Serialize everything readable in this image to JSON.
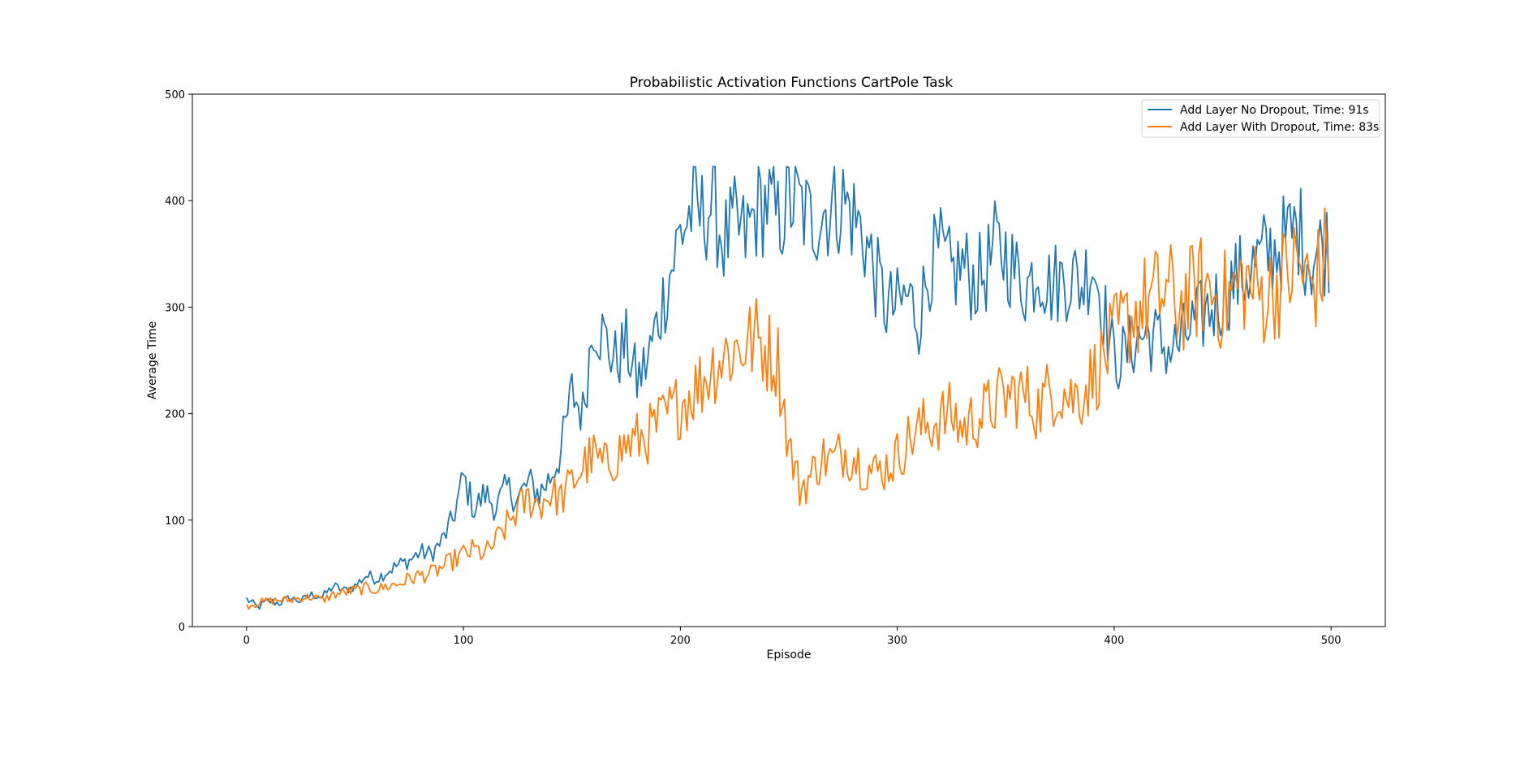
{
  "chart_data": {
    "type": "line",
    "title": "Probabilistic Activation Functions CartPole Task",
    "xlabel": "Episode",
    "ylabel": "Average Time",
    "xlim": [
      -25,
      525
    ],
    "ylim": [
      0,
      500
    ],
    "xticks": [
      0,
      100,
      200,
      300,
      400,
      500
    ],
    "yticks": [
      0,
      100,
      200,
      300,
      400,
      500
    ],
    "legend_position": "top-right",
    "grid": false,
    "colors": {
      "series0": "#1f77b4",
      "series1": "#ff7f0e"
    },
    "anchors_note_x": [
      0,
      5,
      10,
      15,
      20,
      25,
      30,
      35,
      40,
      45,
      50,
      55,
      60,
      65,
      70,
      75,
      80,
      85,
      90,
      95,
      100,
      105,
      110,
      115,
      120,
      125,
      130,
      135,
      140,
      145,
      150,
      155,
      160,
      165,
      170,
      175,
      180,
      185,
      190,
      195,
      200,
      205,
      210,
      215,
      220,
      225,
      230,
      235,
      240,
      245,
      250,
      255,
      260,
      265,
      270,
      275,
      280,
      285,
      290,
      295,
      300,
      305,
      310,
      315,
      320,
      325,
      330,
      335,
      340,
      345,
      350,
      355,
      360,
      365,
      370,
      375,
      380,
      385,
      390,
      395,
      400,
      405,
      410,
      415,
      420,
      425,
      430,
      435,
      440,
      445,
      450,
      455,
      460,
      465,
      470,
      475,
      480,
      485,
      490,
      495,
      500
    ],
    "series": [
      {
        "name": "Add Layer No Dropout, Time: 91s",
        "color": "#1f77b4",
        "x": [
          0,
          5,
          10,
          15,
          20,
          25,
          30,
          35,
          40,
          45,
          50,
          55,
          60,
          65,
          70,
          75,
          80,
          85,
          90,
          95,
          100,
          105,
          110,
          115,
          120,
          125,
          130,
          135,
          140,
          145,
          150,
          155,
          160,
          165,
          170,
          175,
          180,
          185,
          190,
          195,
          200,
          205,
          210,
          215,
          220,
          225,
          230,
          235,
          240,
          245,
          250,
          255,
          260,
          265,
          270,
          275,
          280,
          285,
          290,
          295,
          300,
          305,
          310,
          315,
          320,
          325,
          330,
          335,
          340,
          345,
          350,
          355,
          360,
          365,
          370,
          375,
          380,
          385,
          390,
          395,
          400,
          405,
          410,
          415,
          420,
          425,
          430,
          435,
          440,
          445,
          450,
          455,
          460,
          465,
          470,
          475,
          480,
          485,
          490,
          495,
          499
        ],
        "values": [
          26,
          18,
          24,
          22,
          27,
          24,
          30,
          28,
          38,
          34,
          38,
          48,
          45,
          52,
          58,
          62,
          70,
          68,
          80,
          100,
          140,
          110,
          125,
          112,
          130,
          120,
          135,
          125,
          140,
          165,
          220,
          200,
          290,
          270,
          250,
          265,
          230,
          250,
          290,
          330,
          370,
          390,
          385,
          400,
          360,
          375,
          365,
          390,
          400,
          380,
          400,
          395,
          380,
          390,
          395,
          400,
          385,
          365,
          330,
          300,
          300,
          310,
          290,
          340,
          350,
          330,
          340,
          325,
          330,
          355,
          350,
          330,
          320,
          340,
          320,
          325,
          330,
          320,
          345,
          300,
          250,
          255,
          270,
          275,
          270,
          260,
          265,
          280,
          290,
          300,
          310,
          325,
          330,
          340,
          350,
          355,
          365,
          375,
          345,
          355,
          358
        ]
      },
      {
        "name": "Add Layer With Dropout, Time: 83s",
        "color": "#ff7f0e",
        "x": [
          0,
          5,
          10,
          15,
          20,
          25,
          30,
          35,
          40,
          45,
          50,
          55,
          60,
          65,
          70,
          75,
          80,
          85,
          90,
          95,
          100,
          105,
          110,
          115,
          120,
          125,
          130,
          135,
          140,
          145,
          150,
          155,
          160,
          165,
          170,
          175,
          180,
          185,
          190,
          195,
          200,
          205,
          210,
          215,
          220,
          225,
          230,
          235,
          240,
          245,
          250,
          255,
          260,
          265,
          270,
          275,
          280,
          285,
          290,
          295,
          300,
          305,
          310,
          315,
          320,
          325,
          330,
          335,
          340,
          345,
          350,
          355,
          360,
          365,
          370,
          375,
          380,
          385,
          390,
          395,
          400,
          405,
          410,
          415,
          420,
          425,
          430,
          435,
          440,
          445,
          450,
          455,
          460,
          465,
          470,
          475,
          480,
          485,
          490,
          495,
          499
        ],
        "values": [
          20,
          22,
          24,
          25,
          25,
          27,
          28,
          25,
          30,
          32,
          34,
          36,
          35,
          38,
          40,
          45,
          48,
          50,
          55,
          62,
          68,
          72,
          68,
          80,
          95,
          110,
          120,
          115,
          125,
          120,
          135,
          150,
          160,
          150,
          160,
          170,
          175,
          180,
          190,
          200,
          210,
          220,
          230,
          245,
          255,
          260,
          265,
          270,
          260,
          250,
          170,
          130,
          140,
          160,
          155,
          165,
          160,
          150,
          145,
          150,
          160,
          175,
          185,
          190,
          195,
          200,
          185,
          195,
          200,
          210,
          215,
          220,
          215,
          205,
          220,
          225,
          215,
          220,
          235,
          250,
          270,
          285,
          295,
          305,
          310,
          315,
          300,
          310,
          320,
          315,
          305,
          315,
          325,
          315,
          310,
          320,
          330,
          340,
          320,
          330,
          358
        ]
      }
    ]
  }
}
